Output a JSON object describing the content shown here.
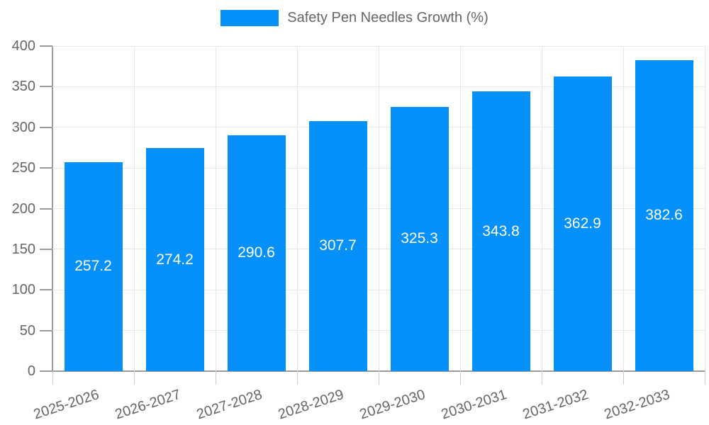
{
  "chart_data": {
    "type": "bar",
    "legend": "Safety Pen Needles Growth (%)",
    "legend_position": "top",
    "categories": [
      "2025-2026",
      "2026-2027",
      "2027-2028",
      "2028-2029",
      "2029-2030",
      "2030-2031",
      "2031-2032",
      "2032-2033"
    ],
    "values": [
      257.2,
      274.2,
      290.6,
      307.7,
      325.3,
      343.8,
      362.9,
      382.6
    ],
    "value_labels": [
      "257.2",
      "274.2",
      "290.6",
      "307.7",
      "325.3",
      "343.8",
      "362.9",
      "382.6"
    ],
    "xlabel": "",
    "ylabel": "",
    "ylim": [
      0,
      400
    ],
    "ytick_step": 50,
    "ytick_labels": [
      "0",
      "50",
      "100",
      "150",
      "200",
      "250",
      "300",
      "350",
      "400"
    ],
    "grid": true,
    "colors": {
      "bar": "#0690fa",
      "grid": "#e6e6e6",
      "axis_line": "#9b9b9b",
      "x_tick": "#cccccc",
      "tick_label": "#666666",
      "value_label": "#ffffff",
      "legend_text": "#666666",
      "background": "#ffffff"
    }
  }
}
